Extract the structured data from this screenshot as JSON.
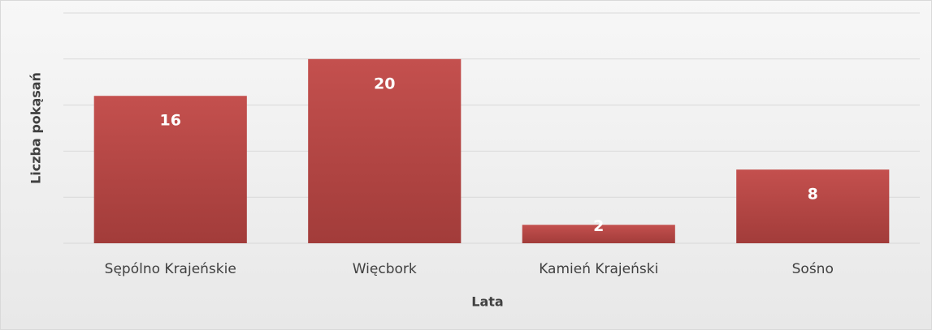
{
  "chart_data": {
    "type": "bar",
    "x_label": "Lata",
    "y_label": "Liczba pokąsań",
    "categories": [
      "Sępólno Krajeńskie",
      "Więcbork",
      "Kamień Krajeński",
      "Sośno"
    ],
    "values": [
      16,
      20,
      2,
      8
    ],
    "color": "#c0504d",
    "ylim": [
      0,
      25
    ],
    "yticks": [
      0,
      5,
      10,
      15,
      20,
      25
    ],
    "grid": true
  }
}
